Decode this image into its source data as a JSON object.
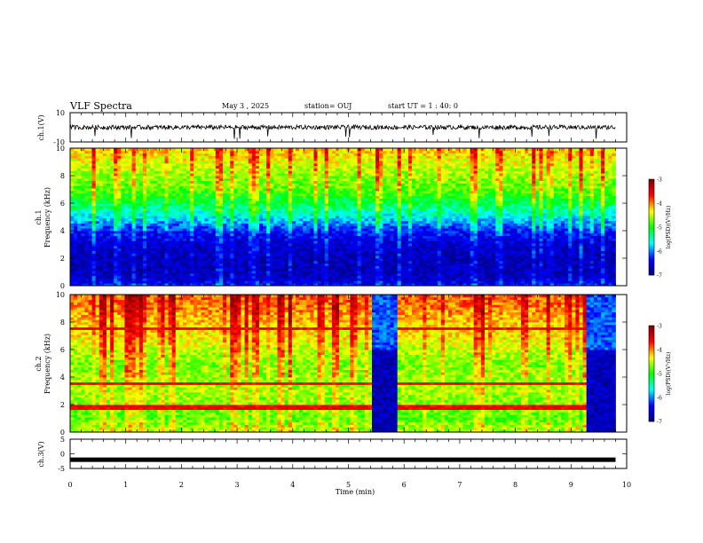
{
  "header": {
    "title": "VLF Spectra",
    "date": "May 3  , 2025",
    "station": "station= OUJ",
    "start_ut": "start  UT  =   1 : 40: 0"
  },
  "colors": {
    "cmap": [
      "#00007f",
      "#0000ff",
      "#00ffff",
      "#00ff00",
      "#ffff00",
      "#ff0000",
      "#7f0000"
    ],
    "trace": "#000000"
  },
  "chart_data": [
    {
      "type": "line",
      "panel": "ch1-waveform",
      "ylabel": "ch.1(V)",
      "ylim": [
        -10,
        10
      ],
      "y_ticklabels": [
        "10",
        "-10"
      ],
      "x_range": [
        0,
        9.8
      ],
      "mean": 0,
      "noise_amplitude": 1.5,
      "spikes_x": [
        0.45,
        1.1,
        2.95,
        3.05,
        3.55,
        4.95,
        5.02,
        6.52,
        7.35,
        8.3,
        8.6,
        9.45
      ]
    },
    {
      "type": "heatmap",
      "panel": "ch1-spectrogram",
      "ylabel": "ch.1\nFrequency (kHz)",
      "ylim": [
        0,
        10
      ],
      "y_ticklabels": [
        "0",
        "2",
        "4",
        "6",
        "8",
        "10"
      ],
      "x_range": [
        0,
        9.8
      ],
      "profile_kHz": [
        0,
        0.5,
        1,
        2,
        3,
        4,
        5,
        6,
        7,
        8,
        9,
        10
      ],
      "profile_log_psd": [
        -6.3,
        -6.6,
        -6.7,
        -6.7,
        -6.6,
        -6.3,
        -5.7,
        -5.2,
        -4.8,
        -4.6,
        -4.4,
        -4.2
      ],
      "colorbar": {
        "label": "log(PSD)(V²/Hz)",
        "range": [
          -7,
          -3
        ],
        "ticklabels": [
          "-3",
          "-4",
          "-5",
          "-6",
          "-7"
        ]
      }
    },
    {
      "type": "heatmap",
      "panel": "ch2-spectrogram",
      "ylabel": "ch.2\nFrequency (kHz)",
      "ylim": [
        0,
        10
      ],
      "y_ticklabels": [
        "0",
        "2",
        "4",
        "6",
        "8",
        "10"
      ],
      "x_range": [
        0,
        9.8
      ],
      "profile_kHz": [
        0,
        0.5,
        1,
        2,
        3,
        4,
        5,
        6,
        7,
        8,
        9,
        10
      ],
      "profile_log_psd": [
        -4.6,
        -4.6,
        -4.8,
        -4.7,
        -4.6,
        -4.6,
        -4.7,
        -4.5,
        -4.3,
        -4.2,
        -4.0,
        -3.9
      ],
      "emission_lines_kHz": [
        1.8,
        3.5,
        7.5
      ],
      "quiet_intervals_min": [
        [
          5.4,
          5.9
        ],
        [
          9.3,
          9.8
        ]
      ],
      "colorbar": {
        "label": "log(PSD)(V²/Hz)",
        "range": [
          -7,
          -3
        ],
        "ticklabels": [
          "-3",
          "-4",
          "-5",
          "-6",
          "-7"
        ]
      }
    },
    {
      "type": "line",
      "panel": "ch3-waveform",
      "ylabel": "ch.3(V)",
      "ylim": [
        -5,
        5
      ],
      "y_ticklabels": [
        "5",
        "0",
        "-5"
      ],
      "x_range": [
        0,
        9.8
      ],
      "mean": -2
    }
  ],
  "xaxis": {
    "label": "Time  (min)",
    "range": [
      0,
      10
    ],
    "ticklabels": [
      "0",
      "1",
      "2",
      "3",
      "4",
      "5",
      "6",
      "7",
      "8",
      "9",
      "10"
    ]
  }
}
